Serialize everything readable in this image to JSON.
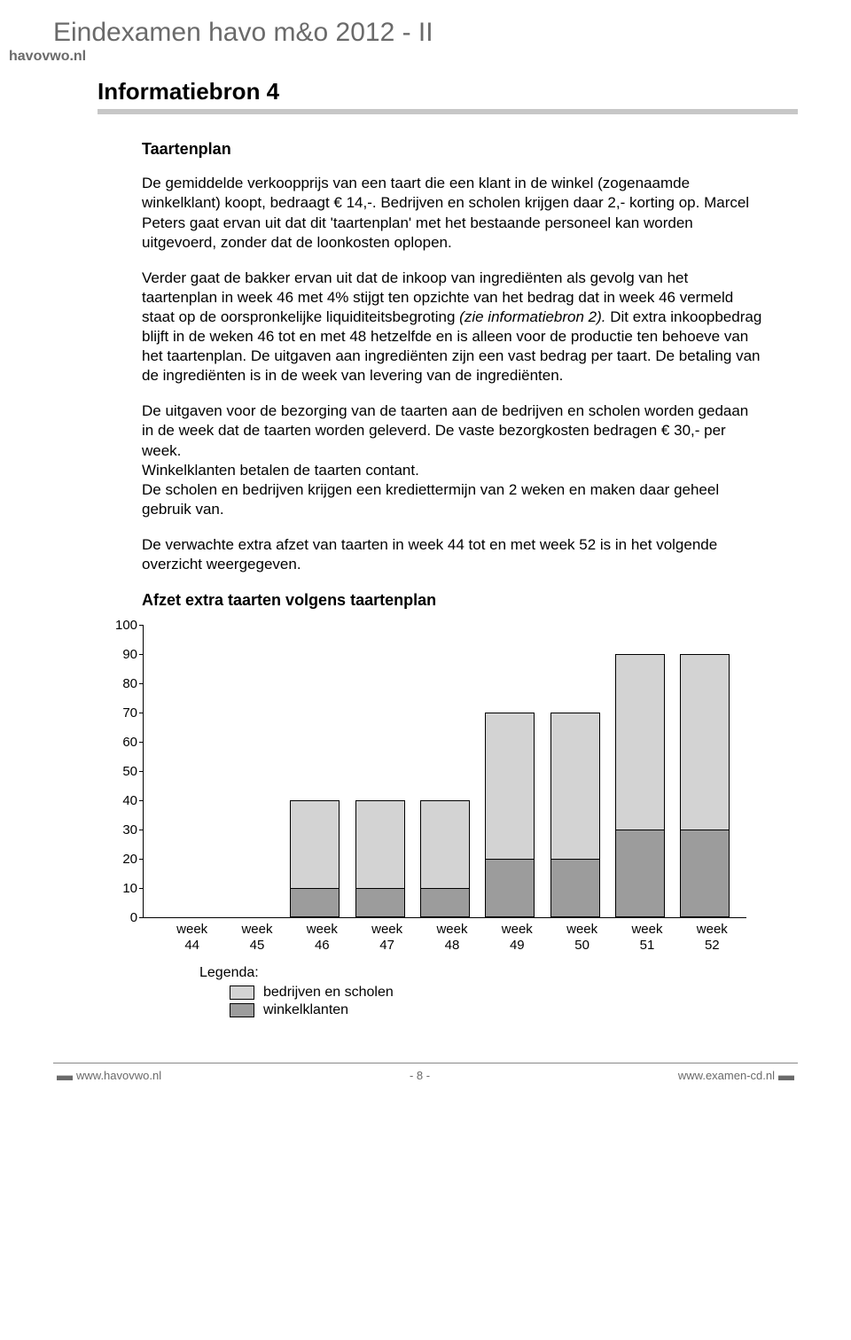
{
  "header": {
    "exam_title": "Eindexamen havo m&o  2012 - II",
    "site_tag": "havovwo.nl",
    "section_heading": "Informatiebron 4"
  },
  "subheading": "Taartenplan",
  "paragraphs": {
    "p1": "De gemiddelde verkoopprijs van een taart die een klant in de winkel (zogenaamde winkelklant) koopt, bedraagt € 14,-. Bedrijven en scholen krijgen daar 2,- korting op. Marcel Peters gaat ervan uit dat dit 'taartenplan' met het bestaande personeel kan worden uitgevoerd, zonder dat de loonkosten oplopen.",
    "p2a": "Verder gaat de bakker ervan uit dat de inkoop van ingrediënten als gevolg van het taartenplan in week 46 met 4% stijgt ten opzichte van het bedrag dat in week 46 vermeld staat op de oorspronkelijke liquiditeitsbegroting ",
    "p2b": "(zie informatiebron 2).",
    "p2c": " Dit extra inkoopbedrag blijft in de weken 46 tot en met 48 hetzelfde en is alleen voor de productie ten behoeve van het taartenplan. De uitgaven aan ingrediënten zijn een vast bedrag per taart. De betaling van de ingrediënten is in de week van levering van de ingrediënten.",
    "p3": "De uitgaven voor de bezorging van de taarten aan de bedrijven en scholen worden gedaan in de week dat de taarten worden geleverd. De vaste bezorgkosten bedragen € 30,- per week.\nWinkelklanten betalen de taarten contant.\nDe scholen en bedrijven krijgen een krediettermijn van 2 weken en maken daar geheel gebruik van.",
    "p4": "De verwachte extra afzet van taarten in week 44 tot en met week 52 is in het volgende overzicht weergegeven."
  },
  "chart_title": "Afzet extra taarten volgens taartenplan",
  "chart": {
    "type": "stacked-bar",
    "ymax": 100,
    "ytick_step": 10,
    "background_color": "#ffffff",
    "axis_color": "#000000",
    "series": [
      {
        "key": "bedrijven_scholen",
        "label": "bedrijven en scholen",
        "color": "#d3d3d3",
        "border": "#000000"
      },
      {
        "key": "winkelklanten",
        "label": "winkelklanten",
        "color": "#9c9c9c",
        "border": "#000000"
      }
    ],
    "categories": [
      {
        "label_line1": "week",
        "label_line2": "44",
        "bedrijven_scholen": 0,
        "winkelklanten": 0
      },
      {
        "label_line1": "week",
        "label_line2": "45",
        "bedrijven_scholen": 0,
        "winkelklanten": 0
      },
      {
        "label_line1": "week",
        "label_line2": "46",
        "bedrijven_scholen": 30,
        "winkelklanten": 10
      },
      {
        "label_line1": "week",
        "label_line2": "47",
        "bedrijven_scholen": 30,
        "winkelklanten": 10
      },
      {
        "label_line1": "week",
        "label_line2": "48",
        "bedrijven_scholen": 30,
        "winkelklanten": 10
      },
      {
        "label_line1": "week",
        "label_line2": "49",
        "bedrijven_scholen": 50,
        "winkelklanten": 20
      },
      {
        "label_line1": "week",
        "label_line2": "50",
        "bedrijven_scholen": 50,
        "winkelklanten": 20
      },
      {
        "label_line1": "week",
        "label_line2": "51",
        "bedrijven_scholen": 60,
        "winkelklanten": 30
      },
      {
        "label_line1": "week",
        "label_line2": "52",
        "bedrijven_scholen": 60,
        "winkelklanten": 30
      }
    ]
  },
  "legend_title": "Legenda:",
  "footer": {
    "left": "www.havovwo.nl",
    "center": "- 8 -",
    "right": "www.examen-cd.nl"
  }
}
